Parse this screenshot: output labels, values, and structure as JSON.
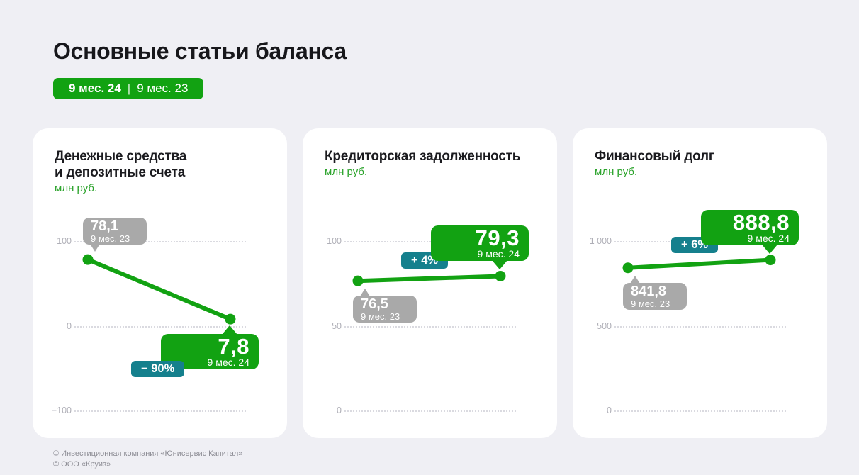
{
  "header": {
    "title": "Основные статьи баланса",
    "period_current": "9 мес. 24",
    "period_separator": "|",
    "period_previous": "9 мес. 23"
  },
  "colors": {
    "green": "#12A212",
    "teal": "#15808D",
    "gray_tooltip": "#A9A9A9",
    "background": "#EFEFF4",
    "card": "#FFFFFF"
  },
  "cards": [
    {
      "title_lines": [
        "Денежные средства",
        "и депозитные счета"
      ],
      "unit": "млн руб.",
      "ticks": [
        {
          "label": "100",
          "value": 100
        },
        {
          "label": "0",
          "value": 0
        },
        {
          "label": "−100",
          "value": -100
        }
      ],
      "points": [
        {
          "display": "78,1",
          "sublabel": "9 мес. 23",
          "value": 78.1,
          "style": "gray",
          "placement": "above"
        },
        {
          "display": "7,8",
          "sublabel": "9 мес. 24",
          "value": 7.8,
          "style": "green",
          "placement": "below"
        }
      ],
      "change": "− 90%"
    },
    {
      "title_lines": [
        "Кредиторская задолженность"
      ],
      "unit": "млн руб.",
      "ticks": [
        {
          "label": "100",
          "value": 100
        },
        {
          "label": "50",
          "value": 50
        },
        {
          "label": "0",
          "value": 0
        }
      ],
      "points": [
        {
          "display": "76,5",
          "sublabel": "9 мес. 23",
          "value": 76.5,
          "style": "gray",
          "placement": "below"
        },
        {
          "display": "79,3",
          "sublabel": "9 мес. 24",
          "value": 79.3,
          "style": "green",
          "placement": "above"
        }
      ],
      "change": "+ 4%"
    },
    {
      "title_lines": [
        "Финансовый долг"
      ],
      "unit": "млн руб.",
      "ticks": [
        {
          "label": "1 000",
          "value": 1000
        },
        {
          "label": "500",
          "value": 500
        },
        {
          "label": "0",
          "value": 0
        }
      ],
      "points": [
        {
          "display": "841,8",
          "sublabel": "9 мес. 23",
          "value": 841.8,
          "style": "gray",
          "placement": "below"
        },
        {
          "display": "888,8",
          "sublabel": "9 мес. 24",
          "value": 888.8,
          "style": "green",
          "placement": "above"
        }
      ],
      "change": "+ 6%"
    }
  ],
  "footer": {
    "line1": "© Инвестиционная компания «Юнисервис Капитал»",
    "line2": "© ООО «Круиз»"
  },
  "chart_data": [
    {
      "type": "line",
      "title": "Денежные средства и депозитные счета",
      "ylabel": "млн руб.",
      "categories": [
        "9 мес. 23",
        "9 мес. 24"
      ],
      "values": [
        78.1,
        7.8
      ],
      "change": "−90%",
      "yticks": [
        100,
        0,
        -100
      ],
      "ylim": [
        -150,
        150
      ],
      "grid": "horizontal-dotted",
      "legend": "none"
    },
    {
      "type": "line",
      "title": "Кредиторская задолженность",
      "ylabel": "млн руб.",
      "categories": [
        "9 мес. 23",
        "9 мес. 24"
      ],
      "values": [
        76.5,
        79.3
      ],
      "change": "+4%",
      "yticks": [
        100,
        50,
        0
      ],
      "ylim": [
        -25,
        125
      ],
      "grid": "horizontal-dotted",
      "legend": "none"
    },
    {
      "type": "line",
      "title": "Финансовый долг",
      "ylabel": "млн руб.",
      "categories": [
        "9 мес. 23",
        "9 мес. 24"
      ],
      "values": [
        841.8,
        888.8
      ],
      "change": "+6%",
      "yticks": [
        1000,
        500,
        0
      ],
      "ylim": [
        -250,
        1250
      ],
      "grid": "horizontal-dotted",
      "legend": "none"
    }
  ]
}
